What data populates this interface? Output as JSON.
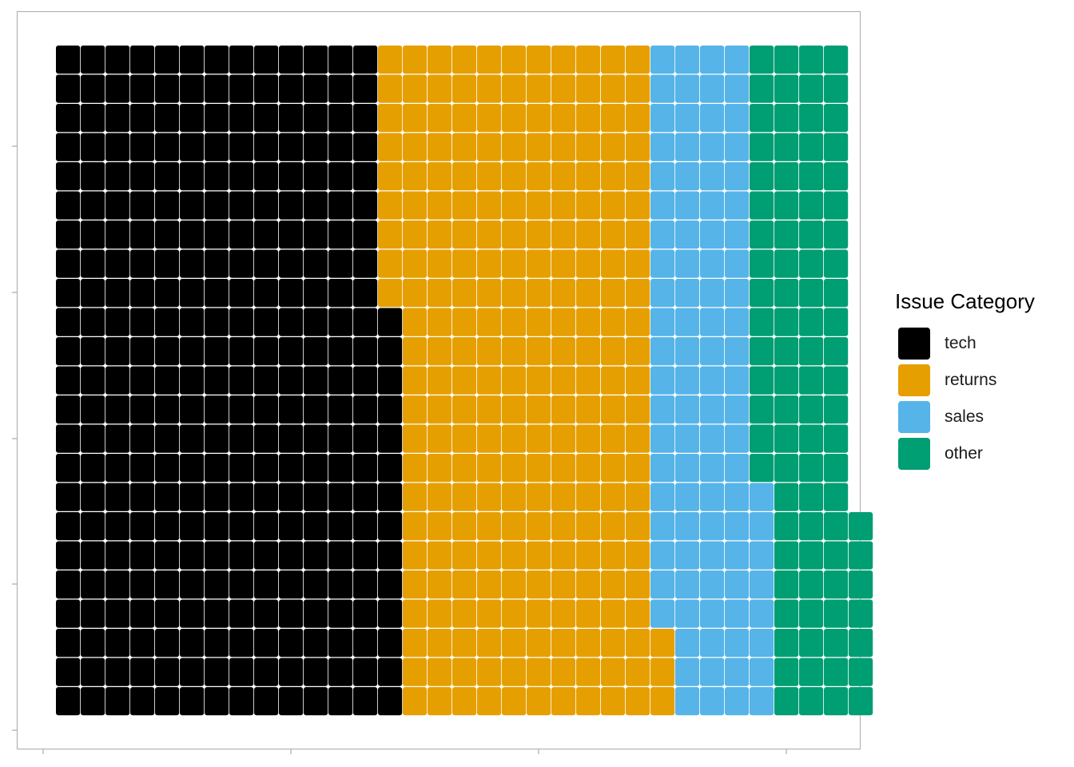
{
  "chart_data": {
    "type": "waffle",
    "title": "",
    "xlabel": "",
    "ylabel": "",
    "rows_per_column": 23,
    "categories": [
      "tech",
      "returns",
      "sales",
      "other"
    ],
    "values": [
      313,
      242,
      97,
      91
    ],
    "colors": [
      "#000000",
      "#E69F00",
      "#56B4E9",
      "#009E73"
    ],
    "legend": {
      "title": "Issue Category",
      "position": "right"
    },
    "grid": false
  }
}
